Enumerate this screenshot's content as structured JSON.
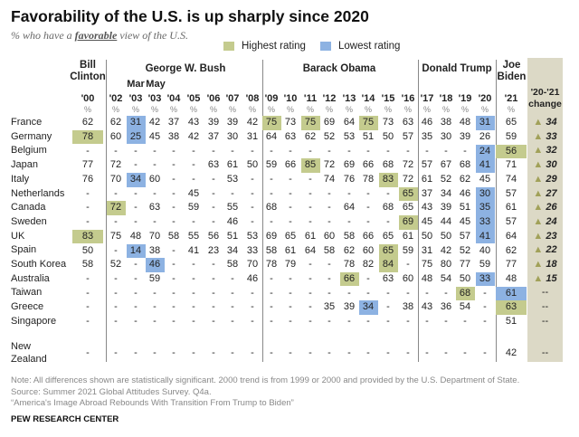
{
  "title": "Favorability of the U.S. is up sharply since 2020",
  "subtitle": {
    "prefix": "% who have a ",
    "emphasis": "favorable",
    "suffix": " view of the U.S."
  },
  "legend": {
    "highest": "Highest rating",
    "lowest": "Lowest rating"
  },
  "colors": {
    "highest": "#c4cb8e",
    "lowest": "#8db2e2",
    "change_bg": "#dcd9c6",
    "triangle": "#a1a159"
  },
  "presidents": [
    {
      "name_lines": [
        "Bill",
        "Clinton"
      ]
    },
    {
      "name_lines": [
        "George W. Bush"
      ]
    },
    {
      "name_lines": [
        "Barack Obama"
      ]
    },
    {
      "name_lines": [
        "Donald Trump"
      ]
    },
    {
      "name_lines": [
        "Joe",
        "Biden"
      ]
    }
  ],
  "change_header": [
    "'20-'21",
    "change"
  ],
  "unit": "%",
  "note": "Note: All differences shown are statistically significant. 2000 trend is from 1999 or 2000 and provided by the U.S. Department of State.",
  "source": "Source: Summer 2021 Global Attitudes Survey. Q4a.",
  "report": "“America's Image Abroad Rebounds With Transition From Trump to Biden”",
  "brand": "PEW RESEARCH CENTER",
  "chart_data": {
    "type": "table",
    "title": "Favorability of the U.S. is up sharply since 2020",
    "columns": [
      "'00",
      "'02",
      "'03",
      "'03",
      "'04",
      "'05",
      "'06",
      "'07",
      "'08",
      "'09",
      "'10",
      "'11",
      "'12",
      "'13",
      "'14",
      "'15",
      "'16",
      "'17",
      "'18",
      "'19",
      "'20",
      "'21"
    ],
    "column_prefixes": [
      "",
      "",
      "Mar",
      "May",
      "",
      "",
      "",
      "",
      "",
      "",
      "",
      "",
      "",
      "",
      "",
      "",
      "",
      "",
      "",
      "",
      "",
      ""
    ],
    "rows": [
      {
        "country": "France",
        "values": [
          "62",
          "62",
          "31",
          "42",
          "37",
          "43",
          "39",
          "39",
          "42",
          "75",
          "73",
          "75",
          "69",
          "64",
          "75",
          "73",
          "63",
          "46",
          "38",
          "48",
          "31",
          "65"
        ],
        "highest": [
          9,
          11,
          14
        ],
        "lowest": [
          2,
          20
        ],
        "change": "34"
      },
      {
        "country": "Germany",
        "values": [
          "78",
          "60",
          "25",
          "45",
          "38",
          "42",
          "37",
          "30",
          "31",
          "64",
          "63",
          "62",
          "52",
          "53",
          "51",
          "50",
          "57",
          "35",
          "30",
          "39",
          "26",
          "59"
        ],
        "highest": [
          0
        ],
        "lowest": [
          2
        ],
        "change": "33"
      },
      {
        "country": "Belgium",
        "values": [
          "-",
          "-",
          "-",
          "-",
          "-",
          "-",
          "-",
          "-",
          "-",
          "-",
          "-",
          "-",
          "-",
          "-",
          "-",
          "-",
          "-",
          "-",
          "-",
          "-",
          "24",
          "56"
        ],
        "highest": [
          21
        ],
        "lowest": [
          20
        ],
        "change": "32"
      },
      {
        "country": "Japan",
        "values": [
          "77",
          "72",
          "-",
          "-",
          "-",
          "-",
          "63",
          "61",
          "50",
          "59",
          "66",
          "85",
          "72",
          "69",
          "66",
          "68",
          "72",
          "57",
          "67",
          "68",
          "41",
          "71"
        ],
        "highest": [
          11
        ],
        "lowest": [
          20
        ],
        "change": "30"
      },
      {
        "country": "Italy",
        "values": [
          "76",
          "70",
          "34",
          "60",
          "-",
          "-",
          "-",
          "53",
          "-",
          "-",
          "-",
          "-",
          "74",
          "76",
          "78",
          "83",
          "72",
          "61",
          "52",
          "62",
          "45",
          "74"
        ],
        "highest": [
          15
        ],
        "lowest": [
          2
        ],
        "change": "29"
      },
      {
        "country": "Netherlands",
        "values": [
          "-",
          "-",
          "-",
          "-",
          "-",
          "45",
          "-",
          "-",
          "-",
          "-",
          "-",
          "-",
          "-",
          "-",
          "-",
          "-",
          "65",
          "37",
          "34",
          "46",
          "30",
          "57"
        ],
        "highest": [
          16
        ],
        "lowest": [
          20
        ],
        "change": "27"
      },
      {
        "country": "Canada",
        "values": [
          "-",
          "72",
          "-",
          "63",
          "-",
          "59",
          "-",
          "55",
          "-",
          "68",
          "-",
          "-",
          "-",
          "64",
          "-",
          "68",
          "65",
          "43",
          "39",
          "51",
          "35",
          "61"
        ],
        "highest": [
          1
        ],
        "lowest": [
          20
        ],
        "change": "26"
      },
      {
        "country": "Sweden",
        "values": [
          "-",
          "-",
          "-",
          "-",
          "-",
          "-",
          "-",
          "46",
          "-",
          "-",
          "-",
          "-",
          "-",
          "-",
          "-",
          "-",
          "69",
          "45",
          "44",
          "45",
          "33",
          "57"
        ],
        "highest": [
          16
        ],
        "lowest": [
          20
        ],
        "change": "24"
      },
      {
        "country": "UK",
        "values": [
          "83",
          "75",
          "48",
          "70",
          "58",
          "55",
          "56",
          "51",
          "53",
          "69",
          "65",
          "61",
          "60",
          "58",
          "66",
          "65",
          "61",
          "50",
          "50",
          "57",
          "41",
          "64"
        ],
        "highest": [
          0
        ],
        "lowest": [
          20
        ],
        "change": "23"
      },
      {
        "country": "Spain",
        "values": [
          "50",
          "-",
          "14",
          "38",
          "-",
          "41",
          "23",
          "34",
          "33",
          "58",
          "61",
          "64",
          "58",
          "62",
          "60",
          "65",
          "59",
          "31",
          "42",
          "52",
          "40",
          "62"
        ],
        "highest": [
          15
        ],
        "lowest": [
          2
        ],
        "change": "22"
      },
      {
        "country": "South Korea",
        "values": [
          "58",
          "52",
          "-",
          "46",
          "-",
          "-",
          "-",
          "58",
          "70",
          "78",
          "79",
          "-",
          "-",
          "78",
          "82",
          "84",
          "-",
          "75",
          "80",
          "77",
          "59",
          "77"
        ],
        "highest": [
          15
        ],
        "lowest": [
          3
        ],
        "change": "18"
      },
      {
        "country": "Australia",
        "values": [
          "-",
          "-",
          "-",
          "59",
          "-",
          "-",
          "-",
          "-",
          "46",
          "-",
          "-",
          "-",
          "-",
          "66",
          "-",
          "63",
          "60",
          "48",
          "54",
          "50",
          "33",
          "48"
        ],
        "highest": [
          13
        ],
        "lowest": [
          20
        ],
        "change": "15"
      },
      {
        "country": "Taiwan",
        "values": [
          "-",
          "-",
          "-",
          "-",
          "-",
          "-",
          "-",
          "-",
          "-",
          "-",
          "-",
          "-",
          "-",
          "-",
          "-",
          "-",
          "-",
          "-",
          "-",
          "68",
          "-",
          "61"
        ],
        "highest": [
          19
        ],
        "lowest": [
          21
        ],
        "change": "--"
      },
      {
        "country": "Greece",
        "values": [
          "-",
          "-",
          "-",
          "-",
          "-",
          "-",
          "-",
          "-",
          "-",
          "-",
          "-",
          "-",
          "35",
          "39",
          "34",
          "-",
          "38",
          "43",
          "36",
          "54",
          "-",
          "63"
        ],
        "highest": [
          21
        ],
        "lowest": [
          14
        ],
        "change": "--"
      },
      {
        "country": "Singapore",
        "values": [
          "-",
          "-",
          "-",
          "-",
          "-",
          "-",
          "-",
          "-",
          "-",
          "-",
          "-",
          "-",
          "-",
          "-",
          "-",
          "-",
          "-",
          "-",
          "-",
          "-",
          "-",
          "51"
        ],
        "highest": [],
        "lowest": [],
        "change": "--"
      },
      {
        "country": "New Zealand",
        "values": [
          "-",
          "-",
          "-",
          "-",
          "-",
          "-",
          "-",
          "-",
          "-",
          "-",
          "-",
          "-",
          "-",
          "-",
          "-",
          "-",
          "-",
          "-",
          "-",
          "-",
          "-",
          "42"
        ],
        "highest": [],
        "lowest": [],
        "change": "--"
      }
    ]
  }
}
